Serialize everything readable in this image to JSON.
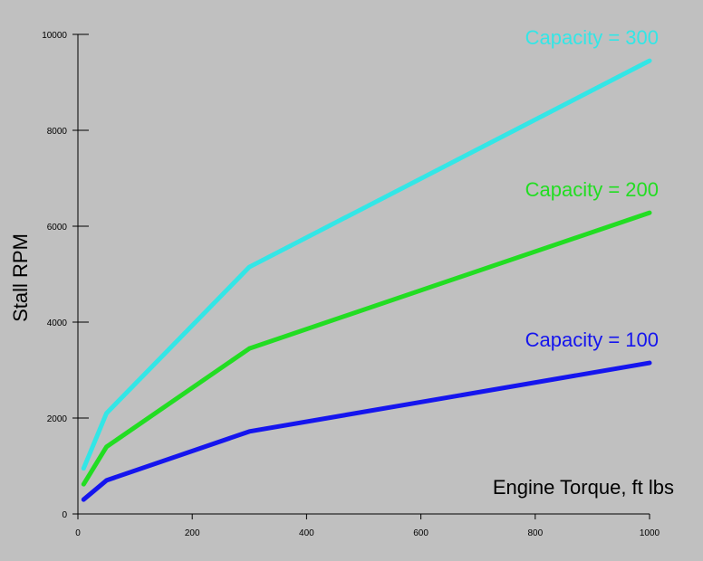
{
  "chart_data": {
    "type": "line",
    "xlabel": "Engine Torque, ft lbs",
    "ylabel": "Stall RPM",
    "xlim": [
      0,
      1000
    ],
    "ylim": [
      0,
      10000
    ],
    "x_ticks": [
      0,
      200,
      400,
      600,
      800,
      1000
    ],
    "y_ticks": [
      0,
      2000,
      4000,
      6000,
      8000,
      10000
    ],
    "grid": false,
    "background_color": "#c0c0c0",
    "series": [
      {
        "name": "Capacity = 300",
        "color": "#33e6e6",
        "x": [
          10,
          50,
          300,
          1000
        ],
        "y": [
          950,
          2100,
          5150,
          9450
        ]
      },
      {
        "name": "Capacity = 200",
        "color": "#22dd22",
        "x": [
          10,
          50,
          300,
          1000
        ],
        "y": [
          620,
          1400,
          3450,
          6280
        ]
      },
      {
        "name": "Capacity = 100",
        "color": "#1515ee",
        "x": [
          10,
          50,
          300,
          1000
        ],
        "y": [
          300,
          700,
          1720,
          3150
        ]
      }
    ]
  }
}
